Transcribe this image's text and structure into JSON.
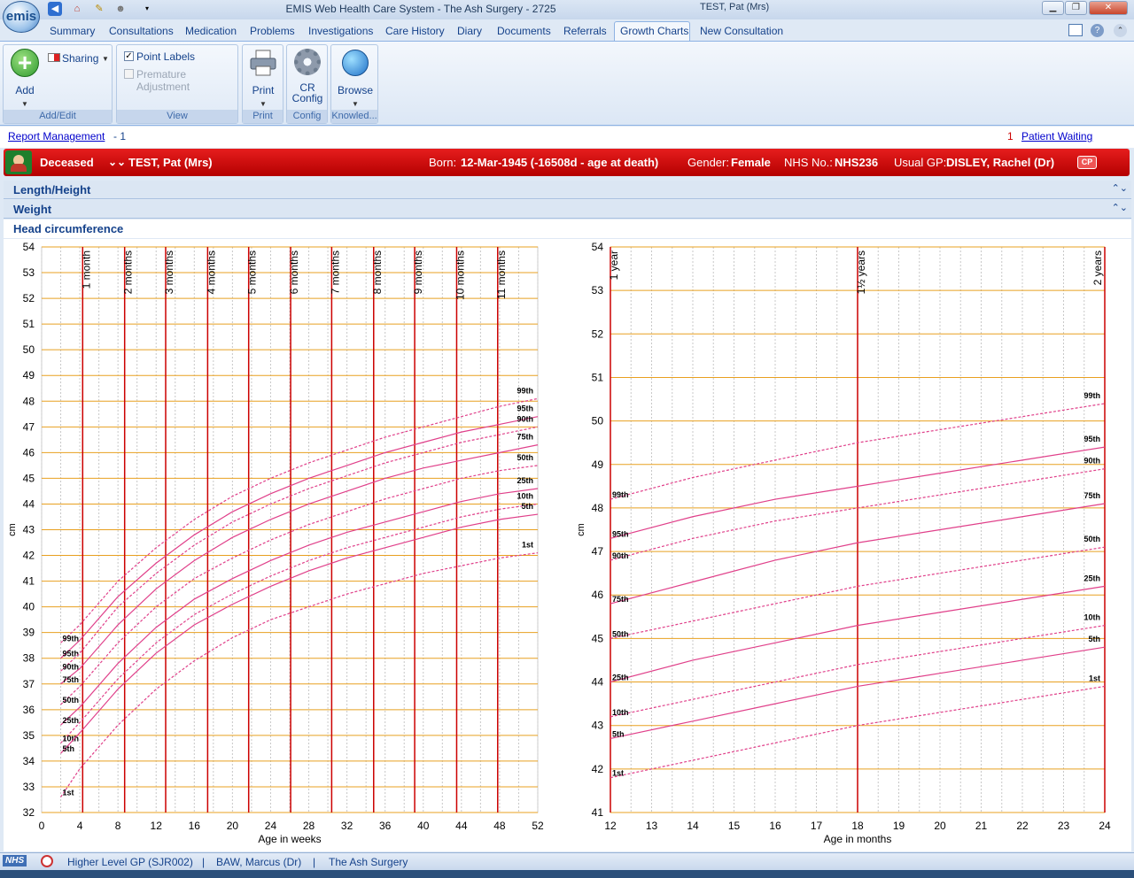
{
  "app": {
    "title": "EMIS Web Health Care System - The Ash Surgery - 2725",
    "context_title": "TEST, Pat (Mrs)",
    "logo": "emis"
  },
  "tabs": [
    "Summary",
    "Consultations",
    "Medication",
    "Problems",
    "Investigations",
    "Care History",
    "Diary",
    "Documents",
    "Referrals",
    "Growth Charts",
    "New Consultation"
  ],
  "active_tab": "Growth Charts",
  "ribbon": {
    "addedit": {
      "add_label": "Add",
      "sharing_label": "Sharing",
      "group": "Add/Edit"
    },
    "view": {
      "point_labels": "Point Labels",
      "point_labels_checked": true,
      "premature": "Premature Adjustment",
      "premature_checked": false,
      "group": "View"
    },
    "print": {
      "label": "Print",
      "group": "Print"
    },
    "config": {
      "label1": "CR",
      "label2": "Config",
      "group": "Config"
    },
    "browse": {
      "label": "Browse",
      "group": "Knowled..."
    }
  },
  "report": {
    "link": "Report Management",
    "count": "- 1",
    "waiting_count": "1",
    "waiting_link": "Patient Waiting"
  },
  "patient": {
    "status": "Deceased",
    "name": "TEST, Pat (Mrs)",
    "born_label": "Born:",
    "born": "12-Mar-1945 (-16508d - age at death)",
    "gender_label": "Gender:",
    "gender": "Female",
    "nhs_label": "NHS No.:",
    "nhs": "NHS236",
    "gp_label": "Usual GP:",
    "gp": "DISLEY, Rachel (Dr)",
    "cp": "CP"
  },
  "sections": [
    "Length/Height",
    "Weight",
    "Head circumference"
  ],
  "chart_data": [
    {
      "type": "line",
      "title": "",
      "xlabel": "Age in weeks",
      "ylabel": "cm",
      "xlim": [
        0,
        52
      ],
      "ylim": [
        32,
        54
      ],
      "xticks": [
        0,
        4,
        8,
        12,
        16,
        20,
        24,
        28,
        32,
        36,
        40,
        44,
        48,
        52
      ],
      "yticks": [
        32,
        33,
        34,
        35,
        36,
        37,
        38,
        39,
        40,
        41,
        42,
        43,
        44,
        45,
        46,
        47,
        48,
        49,
        50,
        51,
        52,
        53,
        54
      ],
      "age_markers": [
        {
          "x": 4.3,
          "label": "1 month"
        },
        {
          "x": 8.7,
          "label": "2 months"
        },
        {
          "x": 13,
          "label": "3 months"
        },
        {
          "x": 17.4,
          "label": "4 months"
        },
        {
          "x": 21.7,
          "label": "5 months"
        },
        {
          "x": 26.1,
          "label": "6 months"
        },
        {
          "x": 30.4,
          "label": "7 months"
        },
        {
          "x": 34.8,
          "label": "8 months"
        },
        {
          "x": 39.1,
          "label": "9 months"
        },
        {
          "x": 43.5,
          "label": "10 months"
        },
        {
          "x": 47.8,
          "label": "11 months"
        }
      ],
      "x": [
        2,
        4,
        8,
        12,
        16,
        20,
        24,
        28,
        32,
        36,
        40,
        44,
        48,
        52
      ],
      "series": [
        {
          "name": "99th",
          "dashed": true,
          "values": [
            38.6,
            39.3,
            41.0,
            42.3,
            43.4,
            44.3,
            45.0,
            45.6,
            46.1,
            46.6,
            47.0,
            47.4,
            47.8,
            48.1
          ]
        },
        {
          "name": "95th",
          "dashed": false,
          "values": [
            38.0,
            38.7,
            40.4,
            41.7,
            42.8,
            43.7,
            44.4,
            45.0,
            45.5,
            46.0,
            46.4,
            46.8,
            47.1,
            47.4
          ]
        },
        {
          "name": "90th",
          "dashed": true,
          "values": [
            37.5,
            38.2,
            40.0,
            41.3,
            42.4,
            43.3,
            44.0,
            44.6,
            45.1,
            45.6,
            46.0,
            46.4,
            46.7,
            47.0
          ]
        },
        {
          "name": "75th",
          "dashed": false,
          "values": [
            37.0,
            37.6,
            39.3,
            40.7,
            41.8,
            42.7,
            43.4,
            44.0,
            44.5,
            45.0,
            45.4,
            45.7,
            46.0,
            46.3
          ]
        },
        {
          "name": "50th",
          "dashed": true,
          "values": [
            36.2,
            36.9,
            38.6,
            40.0,
            41.1,
            41.9,
            42.6,
            43.2,
            43.7,
            44.2,
            44.6,
            45.0,
            45.3,
            45.5
          ]
        },
        {
          "name": "25th",
          "dashed": false,
          "values": [
            35.4,
            36.1,
            37.8,
            39.2,
            40.3,
            41.1,
            41.8,
            42.4,
            42.9,
            43.3,
            43.7,
            44.1,
            44.4,
            44.6
          ]
        },
        {
          "name": "10th",
          "dashed": true,
          "values": [
            34.7,
            35.5,
            37.2,
            38.6,
            39.7,
            40.5,
            41.2,
            41.8,
            42.3,
            42.7,
            43.1,
            43.5,
            43.8,
            44.0
          ]
        },
        {
          "name": "5th",
          "dashed": false,
          "values": [
            34.3,
            35.1,
            36.8,
            38.2,
            39.3,
            40.1,
            40.8,
            41.4,
            41.9,
            42.3,
            42.7,
            43.1,
            43.4,
            43.6
          ]
        },
        {
          "name": "1st",
          "dashed": true,
          "values": [
            32.6,
            33.7,
            35.4,
            36.8,
            37.9,
            38.8,
            39.5,
            40.0,
            40.5,
            40.9,
            41.3,
            41.6,
            41.9,
            42.1
          ]
        }
      ]
    },
    {
      "type": "line",
      "title": "",
      "xlabel": "Age in months",
      "ylabel": "cm",
      "xlim": [
        12,
        24
      ],
      "ylim": [
        41,
        54
      ],
      "xticks": [
        12,
        13,
        14,
        15,
        16,
        17,
        18,
        19,
        20,
        21,
        22,
        23,
        24
      ],
      "yticks": [
        41,
        42,
        43,
        44,
        45,
        46,
        47,
        48,
        49,
        50,
        51,
        52,
        53,
        54
      ],
      "age_markers": [
        {
          "x": 12,
          "label": "1 year"
        },
        {
          "x": 18,
          "label": "1½ years"
        },
        {
          "x": 24,
          "label": "2 years"
        }
      ],
      "x": [
        12,
        14,
        16,
        18,
        20,
        22,
        24
      ],
      "series": [
        {
          "name": "99th",
          "dashed": true,
          "values": [
            48.2,
            48.7,
            49.1,
            49.5,
            49.8,
            50.1,
            50.4
          ]
        },
        {
          "name": "95th",
          "dashed": false,
          "values": [
            47.3,
            47.8,
            48.2,
            48.5,
            48.8,
            49.1,
            49.4
          ]
        },
        {
          "name": "90th",
          "dashed": true,
          "values": [
            46.8,
            47.3,
            47.7,
            48.0,
            48.3,
            48.6,
            48.9
          ]
        },
        {
          "name": "75th",
          "dashed": false,
          "values": [
            45.8,
            46.3,
            46.8,
            47.2,
            47.5,
            47.8,
            48.1
          ]
        },
        {
          "name": "50th",
          "dashed": true,
          "values": [
            45.0,
            45.4,
            45.8,
            46.2,
            46.5,
            46.8,
            47.1
          ]
        },
        {
          "name": "25th",
          "dashed": false,
          "values": [
            44.0,
            44.5,
            44.9,
            45.3,
            45.6,
            45.9,
            46.2
          ]
        },
        {
          "name": "10th",
          "dashed": true,
          "values": [
            43.2,
            43.6,
            44.0,
            44.4,
            44.7,
            45.0,
            45.3
          ]
        },
        {
          "name": "5th",
          "dashed": false,
          "values": [
            42.7,
            43.1,
            43.5,
            43.9,
            44.2,
            44.5,
            44.8
          ]
        },
        {
          "name": "1st",
          "dashed": true,
          "values": [
            41.8,
            42.2,
            42.6,
            43.0,
            43.3,
            43.6,
            43.9
          ]
        }
      ]
    }
  ],
  "status": {
    "nhs": "NHS",
    "level": "Higher Level  GP (SJR002)",
    "user": "BAW, Marcus (Dr)",
    "org": "The Ash Surgery"
  },
  "colors": {
    "major_grid": "#e8a020",
    "marker_line": "#cc0000",
    "centile": "#e0408a",
    "patient_bar": "#cc0000"
  }
}
